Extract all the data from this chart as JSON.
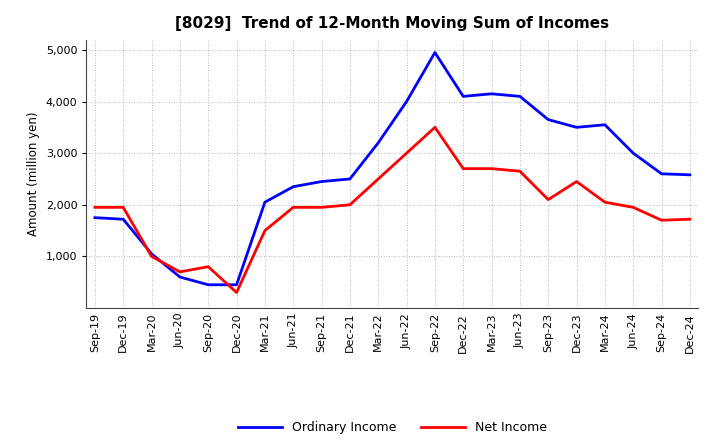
{
  "title": "[8029]  Trend of 12-Month Moving Sum of Incomes",
  "ylabel": "Amount (million yen)",
  "background_color": "#ffffff",
  "plot_bg_color": "#ffffff",
  "grid_color": "#999999",
  "x_labels": [
    "Sep-19",
    "Dec-19",
    "Mar-20",
    "Jun-20",
    "Sep-20",
    "Dec-20",
    "Mar-21",
    "Jun-21",
    "Sep-21",
    "Dec-21",
    "Mar-22",
    "Jun-22",
    "Sep-22",
    "Dec-22",
    "Mar-23",
    "Jun-23",
    "Sep-23",
    "Dec-23",
    "Mar-24",
    "Jun-24",
    "Sep-24",
    "Dec-24"
  ],
  "ordinary_income": [
    1750,
    1720,
    1050,
    600,
    450,
    450,
    2050,
    2350,
    2450,
    2500,
    3200,
    4000,
    4950,
    4100,
    4150,
    4100,
    3650,
    3500,
    3550,
    3000,
    2600,
    2580
  ],
  "net_income": [
    1950,
    1950,
    1000,
    700,
    800,
    300,
    1500,
    1950,
    1950,
    2000,
    2500,
    3000,
    3500,
    2700,
    2700,
    2650,
    2100,
    2450,
    2050,
    1950,
    1700,
    1720
  ],
  "ordinary_color": "#0000ff",
  "net_color": "#ff0000",
  "ylim_min": 0,
  "ylim_max": 5200,
  "yticks": [
    1000,
    2000,
    3000,
    4000,
    5000
  ],
  "line_width": 2.0,
  "title_fontsize": 11,
  "label_fontsize": 8.5,
  "tick_fontsize": 8,
  "legend_fontsize": 9
}
